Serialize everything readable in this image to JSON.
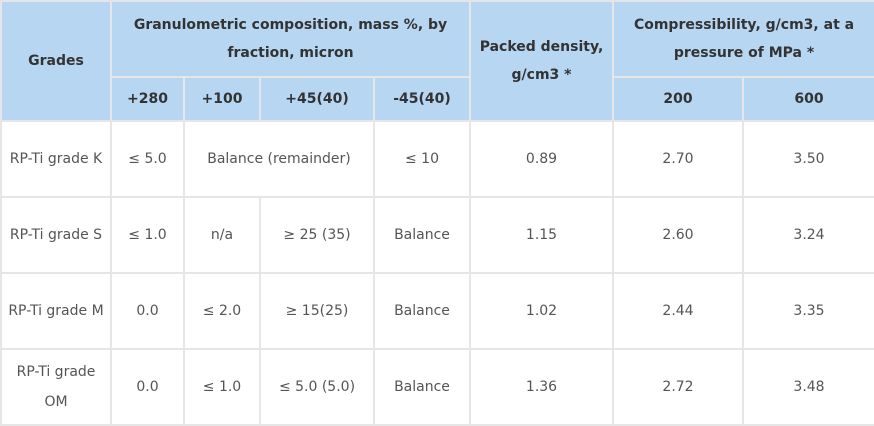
{
  "header": {
    "grades": "Grades",
    "granulometric": "Granulometric composition, mass %, by fraction, micron",
    "packed_density": "Packed density, g/cm3 *",
    "compressibility": "Compressibility, g/cm3, at a pressure of MPa *",
    "fractions": [
      "+280",
      "+100",
      "+45(40)",
      "-45(40)"
    ],
    "pressures": [
      "200",
      "600"
    ]
  },
  "rows": [
    {
      "grade": "RP-Ti grade K",
      "f280": "≤ 5.0",
      "merged": "Balance (remainder)",
      "f_45": "≤ 10",
      "density": "0.89",
      "c200": "2.70",
      "c600": "3.50"
    },
    {
      "grade": "RP-Ti grade S",
      "f280": "≤ 1.0",
      "f100": "n/a",
      "f45": "≥ 25 (35)",
      "f_45": "Balance",
      "density": "1.15",
      "c200": "2.60",
      "c600": "3.24"
    },
    {
      "grade": "RP-Ti grade M",
      "f280": "0.0",
      "f100": "≤ 2.0",
      "f45": "≥ 15(25)",
      "f_45": "Balance",
      "density": "1.02",
      "c200": "2.44",
      "c600": "3.35"
    },
    {
      "grade": "RP-Ti grade OM",
      "f280": "0.0",
      "f100": "≤ 1.0",
      "f45": "≤ 5.0 (5.0)",
      "f_45": "Balance",
      "density": "1.36",
      "c200": "2.72",
      "c600": "3.48"
    }
  ]
}
